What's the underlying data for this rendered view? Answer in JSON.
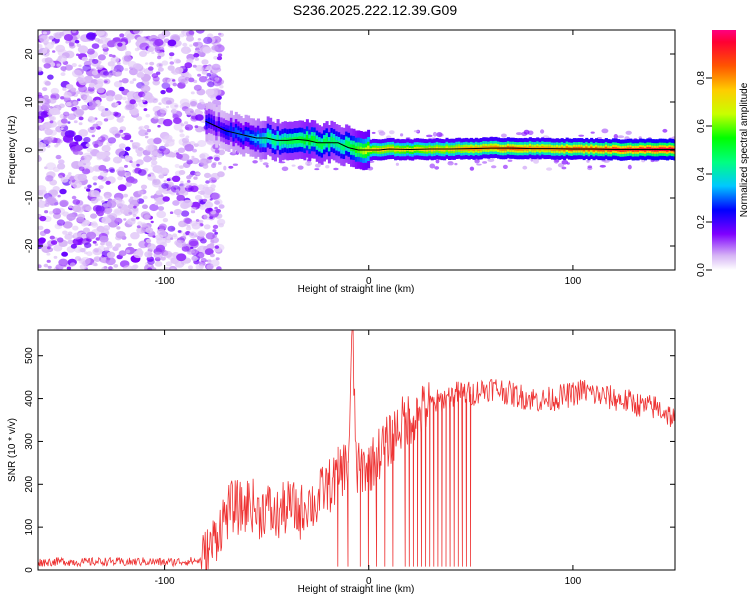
{
  "title": "S236.2025.222.12.39.G09",
  "chart_data": [
    {
      "type": "heatmap",
      "xlabel": "Height of straight line (km)",
      "ylabel": "Frequency (Hz)",
      "xlim": [
        -162,
        150
      ],
      "ylim": [
        -25,
        25
      ],
      "x_ticks": [
        -100,
        0,
        100
      ],
      "y_ticks": [
        -20,
        -10,
        0,
        10,
        20
      ],
      "colorbar": {
        "label": "Normalized spectral amplitude",
        "range": [
          0,
          1
        ],
        "ticks": [
          "0.0",
          "0.2",
          "0.4",
          "0.6",
          "0.8"
        ]
      },
      "signal_track": {
        "x": [
          -80,
          -75,
          -70,
          -65,
          -60,
          -55,
          -50,
          -45,
          -40,
          -35,
          -30,
          -25,
          -20,
          -15,
          -10,
          -5,
          0,
          5,
          10,
          20,
          30,
          40,
          50,
          60,
          70,
          80,
          90,
          100,
          110,
          120,
          130,
          140,
          150
        ],
        "freq_hz": [
          6,
          5,
          4,
          3.5,
          3,
          2.5,
          2.5,
          2,
          2,
          2.2,
          2,
          1.5,
          1.5,
          1.5,
          0.5,
          0,
          0,
          0,
          0.2,
          0.1,
          0.2,
          0.2,
          0.3,
          0.4,
          0.4,
          0.3,
          0.3,
          0.2,
          0.2,
          0.1,
          0.1,
          0.1,
          0.1
        ],
        "amplitude": [
          0.25,
          0.2,
          0.25,
          0.3,
          0.3,
          0.35,
          0.45,
          0.45,
          0.5,
          0.5,
          0.55,
          0.5,
          0.5,
          0.45,
          0.5,
          0.6,
          0.7,
          0.75,
          0.75,
          0.7,
          0.75,
          0.75,
          0.8,
          0.8,
          0.85,
          0.8,
          0.8,
          0.85,
          0.85,
          0.9,
          0.9,
          0.95,
          0.95
        ]
      },
      "noise_region_x": [
        -162,
        -80
      ],
      "grid": false
    },
    {
      "type": "line",
      "xlabel": "Height of straight line (km)",
      "ylabel": "SNR (10 * v/v)",
      "xlim": [
        -162,
        150
      ],
      "ylim": [
        0,
        560
      ],
      "x_ticks": [
        -100,
        0,
        100
      ],
      "y_ticks": [
        0,
        100,
        200,
        300,
        400,
        500
      ],
      "color": "#ee3333",
      "series": [
        {
          "x": [
            -160,
            -150,
            -140,
            -130,
            -120,
            -110,
            -100,
            -90,
            -82,
            -78,
            -74,
            -70,
            -66,
            -62,
            -58,
            -54,
            -50,
            -46,
            -42,
            -38,
            -34,
            -30,
            -26,
            -22,
            -18,
            -14,
            -10,
            -8,
            -6,
            -2,
            2,
            6,
            10,
            14,
            18,
            22,
            26,
            30,
            35,
            40,
            45,
            50,
            55,
            60,
            65,
            70,
            75,
            80,
            85,
            90,
            95,
            100,
            105,
            110,
            115,
            120,
            125,
            130,
            135,
            140,
            145,
            150
          ],
          "values": [
            18,
            20,
            18,
            20,
            18,
            20,
            18,
            20,
            22,
            45,
            90,
            130,
            150,
            140,
            160,
            130,
            150,
            120,
            140,
            150,
            130,
            160,
            150,
            190,
            200,
            230,
            250,
            560,
            230,
            240,
            250,
            280,
            300,
            330,
            350,
            360,
            370,
            385,
            395,
            405,
            415,
            410,
            420,
            425,
            420,
            410,
            405,
            400,
            395,
            400,
            405,
            410,
            420,
            410,
            405,
            400,
            395,
            390,
            380,
            380,
            370,
            350
          ],
          "dropout_x": [
            -15,
            -10,
            -4,
            0,
            4,
            8,
            12,
            18,
            20,
            22,
            24,
            26,
            28,
            30,
            32,
            34,
            36,
            38,
            40,
            42,
            44,
            46,
            48,
            50
          ],
          "dropout_value": 8
        }
      ],
      "grid": false
    }
  ]
}
